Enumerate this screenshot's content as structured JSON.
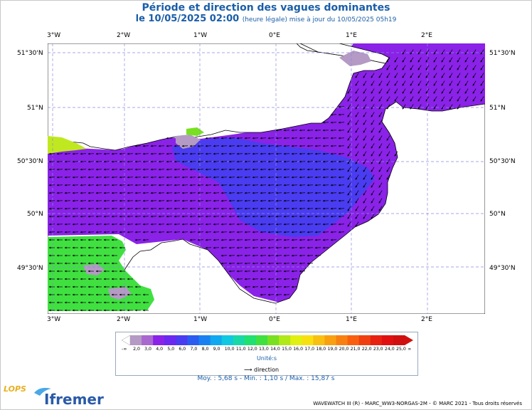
{
  "title": "Période et direction des vagues dominantes",
  "subtitle_main": "le 10/05/2025 02:00",
  "subtitle_note": "(heure légale) mise à jour du 10/05/2025 05h19",
  "lon_labels": [
    "3°W",
    "2°W",
    "1°W",
    "0°E",
    "1°E",
    "2°E"
  ],
  "lat_labels": [
    "51°30'N",
    "51°N",
    "50°30'N",
    "50°N",
    "49°30'N"
  ],
  "colorbar": {
    "ticks": [
      "-∞",
      "2,0",
      "3,0",
      "4,0",
      "5,0",
      "6,0",
      "7,0",
      "8,0",
      "9,0",
      "10,0",
      "11,0",
      "12,0",
      "13,0",
      "14,0",
      "15,0",
      "16,0",
      "17,0",
      "18,0",
      "19,0",
      "20,0",
      "21,0",
      "22,0",
      "23,0",
      "24,0",
      "25,0",
      "∞"
    ],
    "colors": [
      "#b49ac4",
      "#a868d0",
      "#8a22e8",
      "#6a28f0",
      "#4a3cf0",
      "#2a5cf0",
      "#1880f0",
      "#10a8f0",
      "#10c8e0",
      "#18d8a8",
      "#20e070",
      "#40e040",
      "#78e020",
      "#b0e818",
      "#e0f010",
      "#f8e010",
      "#f8c010",
      "#f8a010",
      "#f88010",
      "#f86010",
      "#f04010",
      "#e82010",
      "#e01010",
      "#d01010"
    ],
    "unit_label": "Unité:s",
    "direction_label": "direction",
    "arrow_icon": "arrow-right-icon"
  },
  "stats": "Moy. : 5,68 s   -   Min. : 1,10 s / Max. : 15,87 s",
  "footer": "WAVEWATCH III (R) - MARC_WW3-NORGAS-2M - © MARC 2021 - Tous droits réservés",
  "logos": {
    "lops": "LOPS",
    "ifremer": "Ifremer"
  }
}
